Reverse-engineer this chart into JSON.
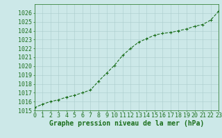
{
  "x": [
    0,
    1,
    2,
    3,
    4,
    5,
    6,
    7,
    8,
    9,
    10,
    11,
    12,
    13,
    14,
    15,
    16,
    17,
    18,
    19,
    20,
    21,
    22,
    23
  ],
  "y": [
    1015.3,
    1015.7,
    1016.0,
    1016.2,
    1016.5,
    1016.7,
    1017.0,
    1017.3,
    1018.3,
    1019.2,
    1020.1,
    1021.2,
    1022.0,
    1022.7,
    1023.1,
    1023.5,
    1023.7,
    1023.8,
    1024.0,
    1024.2,
    1024.5,
    1024.7,
    1025.2,
    1026.2
  ],
  "line_color": "#1a6e1a",
  "marker_color": "#1a6e1a",
  "bg_color": "#cce8e8",
  "grid_color": "#aacccc",
  "xlabel": "Graphe pression niveau de la mer (hPa)",
  "ylim": [
    1015,
    1027
  ],
  "xlim": [
    0,
    23
  ],
  "yticks": [
    1015,
    1016,
    1017,
    1018,
    1019,
    1020,
    1021,
    1022,
    1023,
    1024,
    1025,
    1026
  ],
  "xticks": [
    0,
    1,
    2,
    3,
    4,
    5,
    6,
    7,
    8,
    9,
    10,
    11,
    12,
    13,
    14,
    15,
    16,
    17,
    18,
    19,
    20,
    21,
    22,
    23
  ],
  "xtick_labels": [
    "0",
    "1",
    "2",
    "3",
    "4",
    "5",
    "6",
    "7",
    "8",
    "9",
    "10",
    "11",
    "12",
    "13",
    "14",
    "15",
    "16",
    "17",
    "18",
    "19",
    "20",
    "21",
    "22",
    "23"
  ],
  "line_width": 0.8,
  "marker_size": 3.5,
  "xlabel_fontsize": 7,
  "tick_fontsize": 6
}
